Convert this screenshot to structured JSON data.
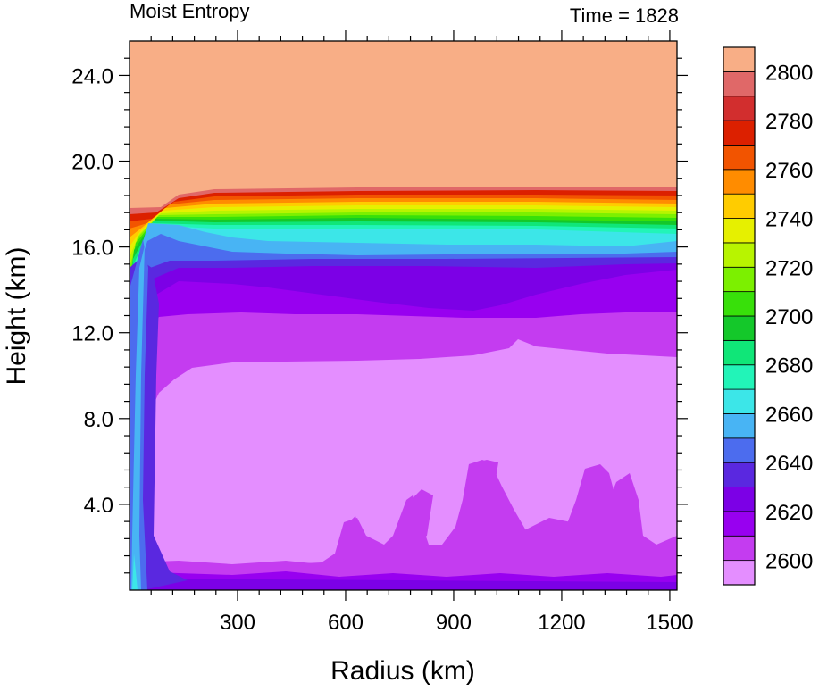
{
  "chart_data": {
    "type": "heatmap",
    "title_left": "Moist Entropy",
    "title_right": "Time = 1828",
    "xlabel": "Radius (km)",
    "ylabel": "Height (km)",
    "xlim": [
      0,
      1520
    ],
    "ylim": [
      0,
      25.6
    ],
    "x_ticks": [
      {
        "value": 300,
        "label": "300"
      },
      {
        "value": 600,
        "label": "600"
      },
      {
        "value": 900,
        "label": "900"
      },
      {
        "value": 1200,
        "label": "1200"
      },
      {
        "value": 1500,
        "label": "1500"
      }
    ],
    "y_ticks": [
      {
        "value": 4,
        "label": "4.0"
      },
      {
        "value": 8,
        "label": "8.0"
      },
      {
        "value": 12,
        "label": "12.0"
      },
      {
        "value": 16,
        "label": "16.0"
      },
      {
        "value": 20,
        "label": "20.0"
      },
      {
        "value": 24,
        "label": "24.0"
      }
    ],
    "colorbar": {
      "levels": [
        2600,
        2610,
        2620,
        2630,
        2640,
        2650,
        2660,
        2670,
        2680,
        2690,
        2700,
        2710,
        2720,
        2730,
        2740,
        2750,
        2760,
        2770,
        2780,
        2790,
        2800
      ],
      "labels": [
        "2600",
        "2620",
        "2640",
        "2660",
        "2680",
        "2700",
        "2720",
        "2740",
        "2760",
        "2780",
        "2800"
      ],
      "colors": [
        "#E48EFF",
        "#C43CF0",
        "#9800F0",
        "#7C00E6",
        "#5A28E0",
        "#4C6CEE",
        "#48B4F4",
        "#3CE6E8",
        "#22F4B8",
        "#10E678",
        "#14C82A",
        "#38E00A",
        "#7CF000",
        "#B8F400",
        "#E6F000",
        "#FFCC00",
        "#FF8C00",
        "#F25400",
        "#DC2000",
        "#D22E2E",
        "#E06868",
        "#F8AE86"
      ]
    }
  }
}
